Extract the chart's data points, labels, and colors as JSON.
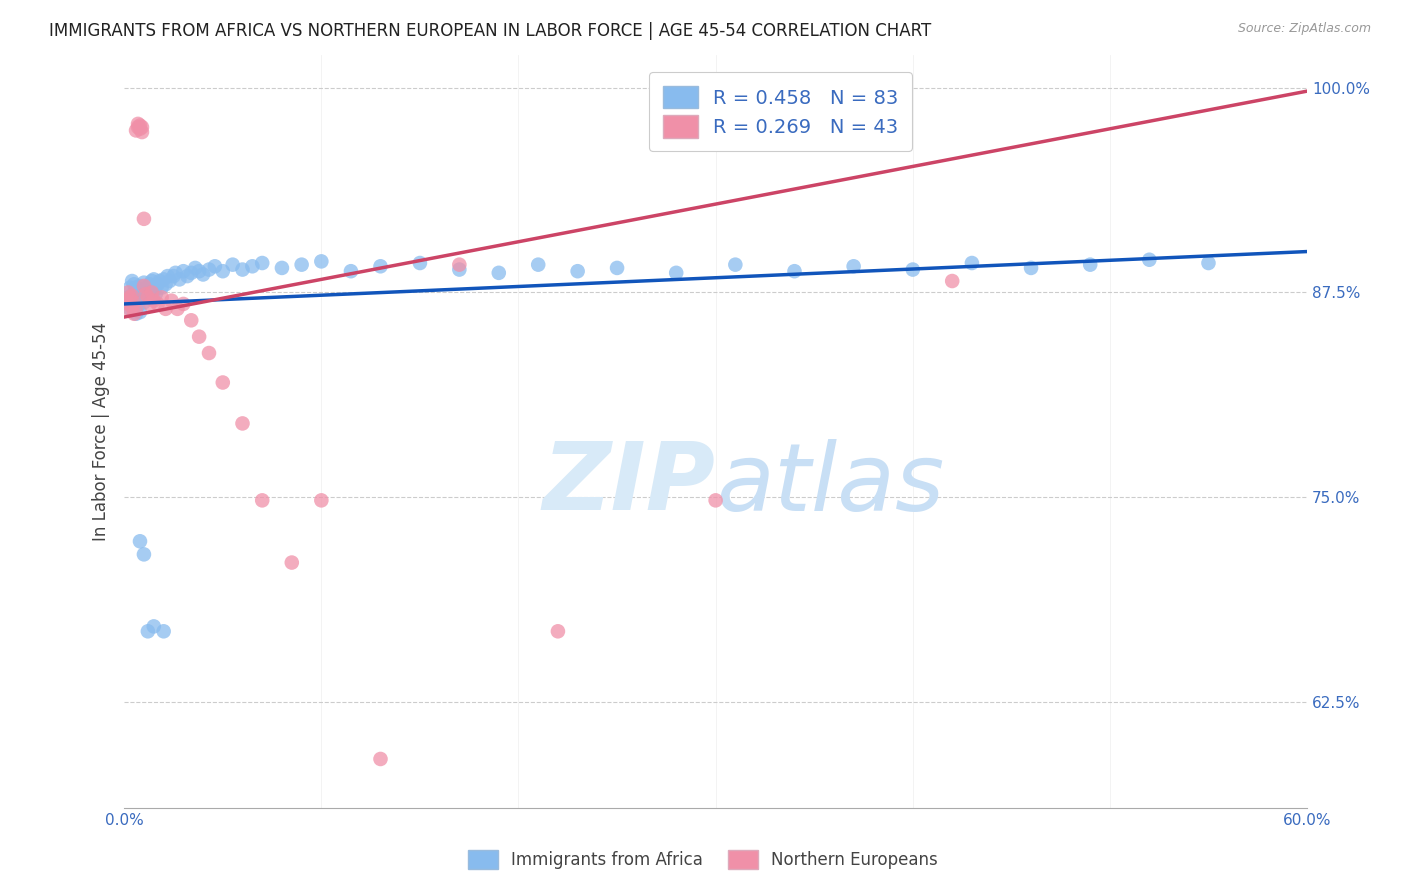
{
  "title": "IMMIGRANTS FROM AFRICA VS NORTHERN EUROPEAN IN LABOR FORCE | AGE 45-54 CORRELATION CHART",
  "source": "Source: ZipAtlas.com",
  "ylabel_label": "In Labor Force | Age 45-54",
  "xlim": [
    0.0,
    0.6
  ],
  "ylim": [
    0.56,
    1.02
  ],
  "ytick_positions": [
    0.625,
    0.75,
    0.875,
    1.0
  ],
  "ytick_labels": [
    "62.5%",
    "75.0%",
    "87.5%",
    "100.0%"
  ],
  "blue_R": 0.458,
  "blue_N": 83,
  "pink_R": 0.269,
  "pink_N": 43,
  "blue_color": "#88bbee",
  "pink_color": "#f090a8",
  "blue_line_color": "#1155bb",
  "pink_line_color": "#cc4466",
  "watermark_zip": "ZIP",
  "watermark_atlas": "atlas",
  "watermark_color": "#ddeeff",
  "blue_scatter_x": [
    0.002,
    0.003,
    0.003,
    0.004,
    0.004,
    0.005,
    0.005,
    0.005,
    0.006,
    0.006,
    0.006,
    0.007,
    0.007,
    0.007,
    0.008,
    0.008,
    0.008,
    0.009,
    0.009,
    0.01,
    0.01,
    0.01,
    0.011,
    0.011,
    0.012,
    0.012,
    0.013,
    0.013,
    0.014,
    0.014,
    0.015,
    0.015,
    0.016,
    0.016,
    0.017,
    0.018,
    0.019,
    0.02,
    0.021,
    0.022,
    0.023,
    0.025,
    0.026,
    0.028,
    0.03,
    0.032,
    0.034,
    0.036,
    0.038,
    0.04,
    0.043,
    0.046,
    0.05,
    0.055,
    0.06,
    0.065,
    0.07,
    0.08,
    0.09,
    0.1,
    0.115,
    0.13,
    0.15,
    0.17,
    0.19,
    0.21,
    0.23,
    0.25,
    0.28,
    0.31,
    0.34,
    0.37,
    0.4,
    0.43,
    0.46,
    0.49,
    0.52,
    0.55,
    0.01,
    0.02,
    0.008,
    0.012,
    0.015
  ],
  "blue_scatter_y": [
    0.872,
    0.878,
    0.865,
    0.882,
    0.87,
    0.875,
    0.868,
    0.88,
    0.873,
    0.878,
    0.862,
    0.876,
    0.871,
    0.867,
    0.874,
    0.879,
    0.863,
    0.877,
    0.872,
    0.875,
    0.869,
    0.881,
    0.874,
    0.878,
    0.872,
    0.876,
    0.88,
    0.875,
    0.882,
    0.878,
    0.876,
    0.883,
    0.879,
    0.874,
    0.88,
    0.882,
    0.878,
    0.883,
    0.88,
    0.885,
    0.882,
    0.885,
    0.887,
    0.883,
    0.888,
    0.885,
    0.887,
    0.89,
    0.888,
    0.886,
    0.889,
    0.891,
    0.888,
    0.892,
    0.889,
    0.891,
    0.893,
    0.89,
    0.892,
    0.894,
    0.888,
    0.891,
    0.893,
    0.889,
    0.887,
    0.892,
    0.888,
    0.89,
    0.887,
    0.892,
    0.888,
    0.891,
    0.889,
    0.893,
    0.89,
    0.892,
    0.895,
    0.893,
    0.715,
    0.668,
    0.723,
    0.668,
    0.671
  ],
  "pink_scatter_x": [
    0.001,
    0.002,
    0.002,
    0.003,
    0.003,
    0.004,
    0.004,
    0.005,
    0.005,
    0.006,
    0.006,
    0.007,
    0.007,
    0.008,
    0.008,
    0.009,
    0.009,
    0.01,
    0.01,
    0.011,
    0.012,
    0.013,
    0.014,
    0.015,
    0.017,
    0.019,
    0.021,
    0.024,
    0.027,
    0.03,
    0.034,
    0.038,
    0.043,
    0.05,
    0.06,
    0.07,
    0.085,
    0.1,
    0.13,
    0.17,
    0.22,
    0.3,
    0.42
  ],
  "pink_scatter_y": [
    0.87,
    0.868,
    0.875,
    0.864,
    0.872,
    0.866,
    0.873,
    0.862,
    0.869,
    0.865,
    0.974,
    0.976,
    0.978,
    0.975,
    0.977,
    0.973,
    0.976,
    0.92,
    0.879,
    0.874,
    0.872,
    0.868,
    0.875,
    0.87,
    0.868,
    0.872,
    0.865,
    0.87,
    0.865,
    0.868,
    0.858,
    0.848,
    0.838,
    0.82,
    0.795,
    0.748,
    0.71,
    0.748,
    0.59,
    0.892,
    0.668,
    0.748,
    0.882
  ],
  "blue_line_x": [
    0.0,
    0.6
  ],
  "blue_line_y": [
    0.868,
    0.9
  ],
  "pink_line_x": [
    0.0,
    0.6
  ],
  "pink_line_y": [
    0.86,
    0.998
  ]
}
